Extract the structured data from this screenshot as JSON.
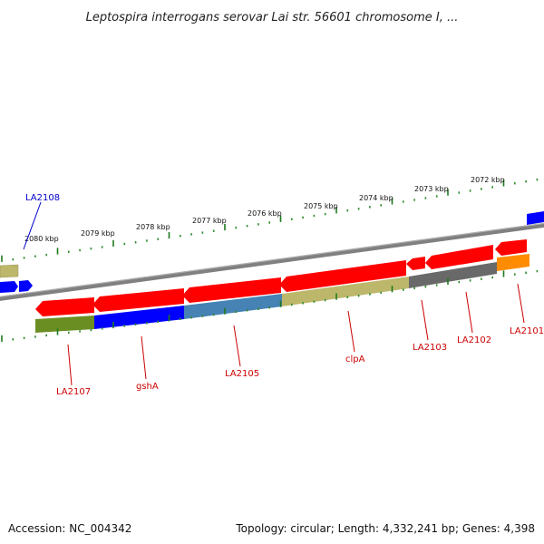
{
  "title": "Leptospira interrogans serovar Lai str. 56601 chromosome I, ...",
  "colors": {
    "backbone": "#808080",
    "tick_dot": "#2e8b2e",
    "tick_major": "#1f7a1f",
    "forward_label": "#0000cc",
    "reverse_label": "#cc0000"
  },
  "ticks": [
    {
      "label": "2080 kbp"
    },
    {
      "label": "2079 kbp"
    },
    {
      "label": "2078 kbp"
    },
    {
      "label": "2077 kbp"
    },
    {
      "label": "2076 kbp"
    },
    {
      "label": "2075 kbp"
    },
    {
      "label": "2074 kbp"
    },
    {
      "label": "2073 kbp"
    },
    {
      "label": "2072 kbp"
    }
  ],
  "genes": [
    {
      "name": "LA2108",
      "strand": "forward",
      "color": "#0000ff"
    },
    {
      "name": "LA2107",
      "strand": "reverse",
      "color": "#ff0000"
    },
    {
      "name": "gshA",
      "strand": "reverse",
      "color": "#ff0000"
    },
    {
      "name": "LA2105",
      "strand": "reverse",
      "color": "#ff0000"
    },
    {
      "name": "clpA",
      "strand": "reverse",
      "color": "#ff0000"
    },
    {
      "name": "LA2103",
      "strand": "reverse",
      "color": "#ff0000"
    },
    {
      "name": "LA2102",
      "strand": "reverse",
      "color": "#ff0000"
    },
    {
      "name": "LA2101",
      "strand": "reverse",
      "color": "#ff0000"
    }
  ],
  "cog_colors": [
    "#6b8e23",
    "#0000ff",
    "#4682b4",
    "#bdb76b",
    "#696969",
    "#ff8c00"
  ],
  "footer": {
    "accession": "Accession: NC_004342",
    "summary": "Topology: circular; Length: 4,332,241 bp; Genes: 4,398"
  }
}
